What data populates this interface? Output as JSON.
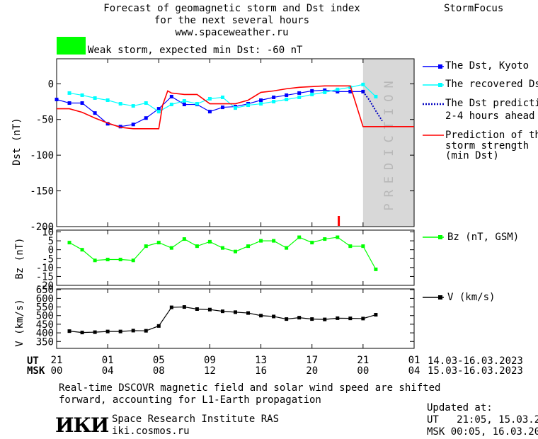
{
  "header": {
    "title_lines": [
      "Forecast of geomagnetic storm and Dst index",
      "for the next several hours",
      "www.spaceweather.ru"
    ],
    "brand": "StormFocus",
    "storm_text": "Weak storm, expected min Dst: -60 nT",
    "storm_color": "#00ff00"
  },
  "chart_data": [
    {
      "type": "line",
      "ylabel": "Dst (nT)",
      "ylim": [
        -200,
        35
      ],
      "yticks": [
        0,
        -50,
        -100,
        -150,
        -200
      ],
      "ytick_labels": [
        "0",
        "-50",
        "-100",
        "-150",
        "-200"
      ],
      "xlim": [
        21,
        49
      ],
      "prediction_label": "PREDICTION",
      "prediction_band": [
        45,
        49
      ],
      "series": [
        {
          "name": "The Dst, Kyoto",
          "color": "#0000ff",
          "style": "solid-square",
          "x": [
            21,
            22,
            23,
            24,
            25,
            26,
            27,
            28,
            29,
            30,
            31,
            32,
            33,
            34,
            35,
            36,
            37,
            38,
            39,
            40,
            41,
            42,
            43,
            44,
            45
          ],
          "y": [
            -22,
            -27,
            -27,
            -41,
            -56,
            -60,
            -57,
            -48,
            -35,
            -18,
            -29,
            -29,
            -39,
            -33,
            -32,
            -28,
            -23,
            -19,
            -16,
            -13,
            -10,
            -9,
            -11,
            -11,
            -11
          ]
        },
        {
          "name": "The recovered Dst",
          "color": "#00ffff",
          "style": "solid-square",
          "x": [
            22,
            23,
            24,
            25,
            26,
            27,
            28,
            29,
            30,
            31,
            32,
            33,
            34,
            35,
            36,
            37,
            38,
            39,
            40,
            41,
            42,
            43,
            44,
            45,
            46
          ],
          "y": [
            -13,
            -16,
            -20,
            -23,
            -28,
            -31,
            -27,
            -39,
            -29,
            -24,
            -28,
            -21,
            -19,
            -34,
            -30,
            -28,
            -25,
            -22,
            -19,
            -15,
            -12,
            -8,
            -5,
            -1,
            -18
          ]
        },
        {
          "name": "The Dst prediction 2-4 hours ahead",
          "color": "#0000c0",
          "style": "dotted",
          "x": [
            45,
            45.5,
            46,
            46.5
          ],
          "y": [
            -11,
            -23,
            -38,
            -52
          ]
        },
        {
          "name": "Prediction of the storm strength (min Dst)",
          "color": "#ff0000",
          "style": "step",
          "x": [
            21,
            22,
            23,
            24,
            25,
            26,
            27,
            28,
            29,
            29.3,
            29.7,
            30,
            31,
            32,
            33,
            34,
            35,
            36,
            37,
            38,
            39,
            40,
            41,
            42,
            43,
            44,
            45,
            46,
            47,
            48,
            49
          ],
          "y": [
            -35,
            -35,
            -40,
            -48,
            -55,
            -61,
            -63,
            -63,
            -63,
            -30,
            -10,
            -13,
            -15,
            -15,
            -28,
            -28,
            -28,
            -23,
            -12,
            -10,
            -7,
            -5,
            -4,
            -3,
            -3,
            -3,
            -60,
            -60,
            -60,
            -60,
            -60
          ]
        }
      ],
      "marker_x": 43.1
    },
    {
      "type": "line",
      "ylabel": "Bz (nT)",
      "ylim": [
        -20,
        11
      ],
      "yticks": [
        10,
        5,
        0,
        -5,
        -10,
        -15,
        -20
      ],
      "ytick_labels": [
        "10",
        "5",
        "0",
        "-5",
        "-10",
        "-15",
        "-20"
      ],
      "xlim": [
        21,
        49
      ],
      "series": [
        {
          "name": "Bz (nT, GSM)",
          "color": "#00ff00",
          "x": [
            22,
            23,
            24,
            25,
            26,
            27,
            28,
            29,
            30,
            31,
            32,
            33,
            34,
            35,
            36,
            37,
            38,
            39,
            40,
            41,
            42,
            43,
            44,
            45,
            46
          ],
          "y": [
            4,
            0,
            -6,
            -5.5,
            -5.5,
            -6,
            2,
            4,
            1,
            6,
            2,
            4.5,
            1,
            -1,
            2,
            5,
            5,
            1,
            7,
            4,
            6,
            7,
            2,
            2,
            -11
          ]
        }
      ]
    },
    {
      "type": "line",
      "ylabel": "V (km/s)",
      "ylim": [
        310,
        655
      ],
      "yticks": [
        650,
        600,
        550,
        500,
        450,
        400,
        350
      ],
      "ytick_labels": [
        "650",
        "600",
        "550",
        "500",
        "450",
        "400",
        "350"
      ],
      "xlim": [
        21,
        49
      ],
      "series": [
        {
          "name": "V (km/s)",
          "color": "#000000",
          "x": [
            22,
            23,
            24,
            25,
            26,
            27,
            28,
            29,
            30,
            31,
            32,
            33,
            34,
            35,
            36,
            37,
            38,
            39,
            40,
            41,
            42,
            43,
            44,
            45,
            46
          ],
          "y": [
            410,
            402,
            404,
            408,
            408,
            413,
            412,
            440,
            548,
            550,
            538,
            535,
            525,
            520,
            515,
            500,
            495,
            480,
            488,
            480,
            478,
            485,
            484,
            483,
            505
          ]
        }
      ]
    }
  ],
  "x_axis": {
    "ut_label": "UT",
    "msk_label": "MSK",
    "ut_ticks": [
      "21",
      "01",
      "05",
      "09",
      "13",
      "17",
      "21",
      "01"
    ],
    "msk_ticks": [
      "00",
      "04",
      "08",
      "12",
      "16",
      "20",
      "00",
      "04"
    ],
    "ut_dates": "14.03-16.03.2023",
    "msk_dates": "15.03-16.03.2023"
  },
  "legend": {
    "kyoto": "The Dst, Kyoto",
    "recovered": "The recovered Dst",
    "pred_line1": "The Dst prediction",
    "pred_line2": "2-4 hours ahead",
    "strength_line1": "Prediction of the",
    "strength_line2": "storm strength",
    "strength_line3": "(min Dst)",
    "bz": "Bz (nT, GSM)",
    "v": "V (km/s)"
  },
  "footer": {
    "note_line1": "Real-time DSCOVR magnetic field and solar wind speed are shifted",
    "note_line2": "forward, accounting for L1-Earth propagation",
    "logo_text": "ИКИ",
    "institute": "Space Research Institute RAS",
    "url": "iki.cosmos.ru",
    "updated_label": "Updated at:",
    "updated_ut": "UT   21:05, 15.03.2023",
    "updated_msk": "MSK 00:05, 16.03.2023"
  }
}
